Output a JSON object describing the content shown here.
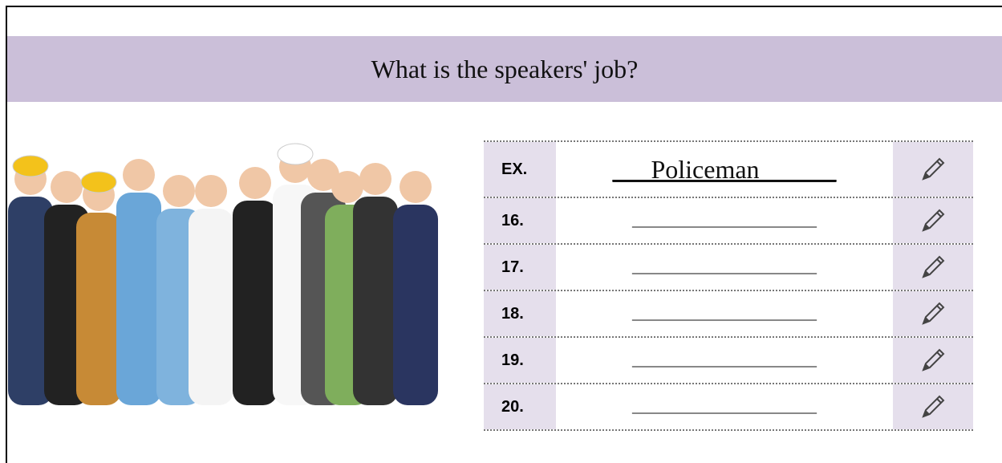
{
  "title": "What is the speakers' job?",
  "table": {
    "rows": [
      [
        "EX.",
        "___Policeman______"
      ],
      [
        "16.",
        "_______________________"
      ],
      [
        "17.",
        "_______________________"
      ],
      [
        "18.",
        "_______________________"
      ],
      [
        "19.",
        "_______________________"
      ],
      [
        "20.",
        "_______________________"
      ]
    ]
  }
}
